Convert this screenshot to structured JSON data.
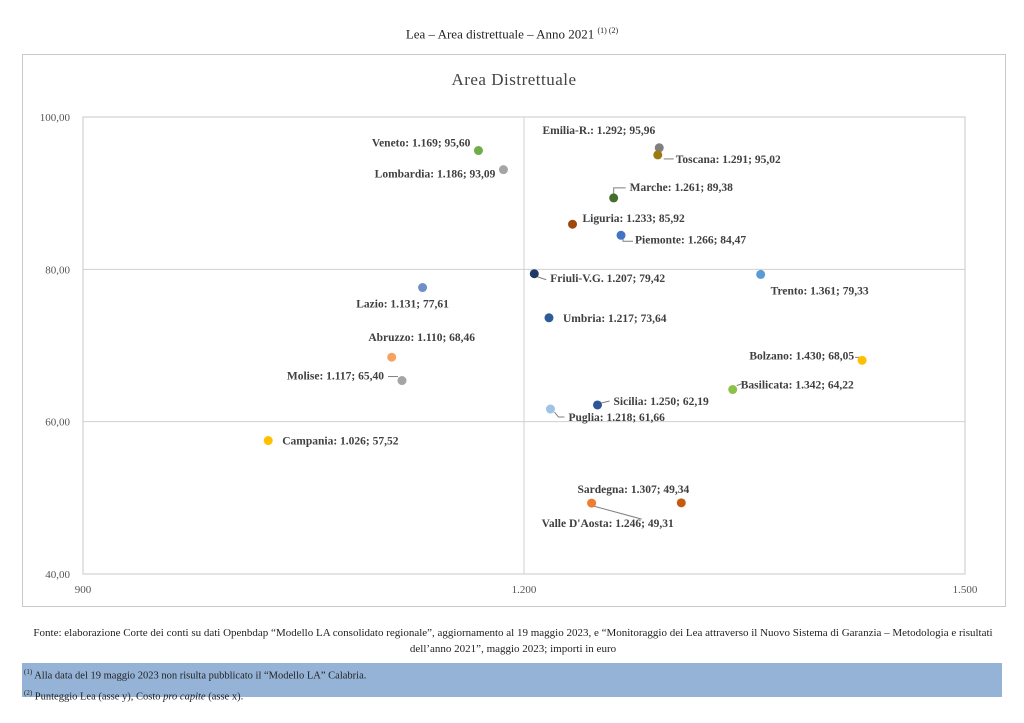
{
  "page": {
    "title": "Lea – Area distrettuale – Anno 2021",
    "title_refs": "(1) (2)",
    "source": "Fonte: elaborazione Corte dei conti su dati Openbdap “Modello LA consolidato regionale”, aggiornamento al 19 maggio 2023, e “Monitoraggio dei Lea attraverso il Nuovo Sistema di Garanzia – Metodologia e risultati dell’anno 2021”, maggio 2023; importi in euro",
    "note1_ref": "(1)",
    "note1": "Alla data del 19 maggio 2023 non risulta pubblicato il “Modello LA” Calabria.",
    "note2_ref": "(2)",
    "note2_a": "Punteggio Lea (asse y), Costo ",
    "note2_em": "pro capite",
    "note2_b": " (asse x)."
  },
  "chart_data": {
    "type": "scatter",
    "title": "Area Distrettuale",
    "xlim": [
      900,
      1500
    ],
    "ylim": [
      40,
      100
    ],
    "xticks": [
      {
        "value": 900,
        "label": "900"
      },
      {
        "value": 1200,
        "label": "1.200"
      },
      {
        "value": 1500,
        "label": "1.500"
      }
    ],
    "yticks": [
      {
        "value": 40,
        "label": "40,00"
      },
      {
        "value": 60,
        "label": "60,00"
      },
      {
        "value": 80,
        "label": "80,00"
      },
      {
        "value": 100,
        "label": "100,00"
      }
    ],
    "gridlines": {
      "x": [
        1200
      ],
      "y": [
        60,
        80
      ]
    },
    "points": [
      {
        "name": "Veneto",
        "x": 1169,
        "y": 95.6,
        "label": "Veneto: 1.169; 95,60",
        "color": "#70ad47"
      },
      {
        "name": "Lombardia",
        "x": 1186,
        "y": 93.09,
        "label": "Lombardia: 1.186; 93,09",
        "color": "#a5a5a5"
      },
      {
        "name": "Emilia-R.",
        "x": 1292,
        "y": 95.96,
        "label": "Emilia-R.: 1.292; 95,96",
        "color": "#7f7f7f"
      },
      {
        "name": "Toscana",
        "x": 1291,
        "y": 95.02,
        "label": "Toscana: 1.291; 95,02",
        "color": "#9c7a12"
      },
      {
        "name": "Marche",
        "x": 1261,
        "y": 89.38,
        "label": "Marche: 1.261; 89,38",
        "color": "#446e2c"
      },
      {
        "name": "Liguria",
        "x": 1233,
        "y": 85.92,
        "label": "Liguria: 1.233; 85,92",
        "color": "#9e480e"
      },
      {
        "name": "Piemonte",
        "x": 1266,
        "y": 84.47,
        "label": "Piemonte: 1.266; 84,47",
        "color": "#4472c4"
      },
      {
        "name": "Friuli-V.G.",
        "x": 1207,
        "y": 79.42,
        "label": "Friuli-V.G. 1.207; 79,42",
        "color": "#1f3864"
      },
      {
        "name": "Trento",
        "x": 1361,
        "y": 79.33,
        "label": "Trento: 1.361; 79,33",
        "color": "#5b9bd5"
      },
      {
        "name": "Lazio",
        "x": 1131,
        "y": 77.61,
        "label": "Lazio: 1.131; 77,61",
        "color": "#6f8fc9"
      },
      {
        "name": "Umbria",
        "x": 1217,
        "y": 73.64,
        "label": "Umbria: 1.217; 73,64",
        "color": "#2e5c9a"
      },
      {
        "name": "Abruzzo",
        "x": 1110,
        "y": 68.46,
        "label": "Abruzzo: 1.110; 68,46",
        "color": "#f4a460"
      },
      {
        "name": "Bolzano",
        "x": 1430,
        "y": 68.05,
        "label": "Bolzano: 1.430; 68,05",
        "color": "#ffc000"
      },
      {
        "name": "Molise",
        "x": 1117,
        "y": 65.4,
        "label": "Molise: 1.117; 65,40",
        "color": "#a5a5a5"
      },
      {
        "name": "Basilicata",
        "x": 1342,
        "y": 64.22,
        "label": "Basilicata: 1.342; 64,22",
        "color": "#8bc34a"
      },
      {
        "name": "Sicilia",
        "x": 1250,
        "y": 62.19,
        "label": "Sicilia: 1.250; 62,19",
        "color": "#2f5597"
      },
      {
        "name": "Puglia",
        "x": 1218,
        "y": 61.66,
        "label": "Puglia: 1.218; 61,66",
        "color": "#9dc3e6"
      },
      {
        "name": "Campania",
        "x": 1026,
        "y": 57.52,
        "label": "Campania: 1.026; 57,52",
        "color": "#ffc000"
      },
      {
        "name": "Sardegna",
        "x": 1307,
        "y": 49.34,
        "label": "Sardegna: 1.307; 49,34",
        "color": "#c55a11"
      },
      {
        "name": "Valle D'Aosta",
        "x": 1246,
        "y": 49.31,
        "label": "Valle D'Aosta: 1.246; 49,31",
        "color": "#ed7d31"
      }
    ]
  }
}
